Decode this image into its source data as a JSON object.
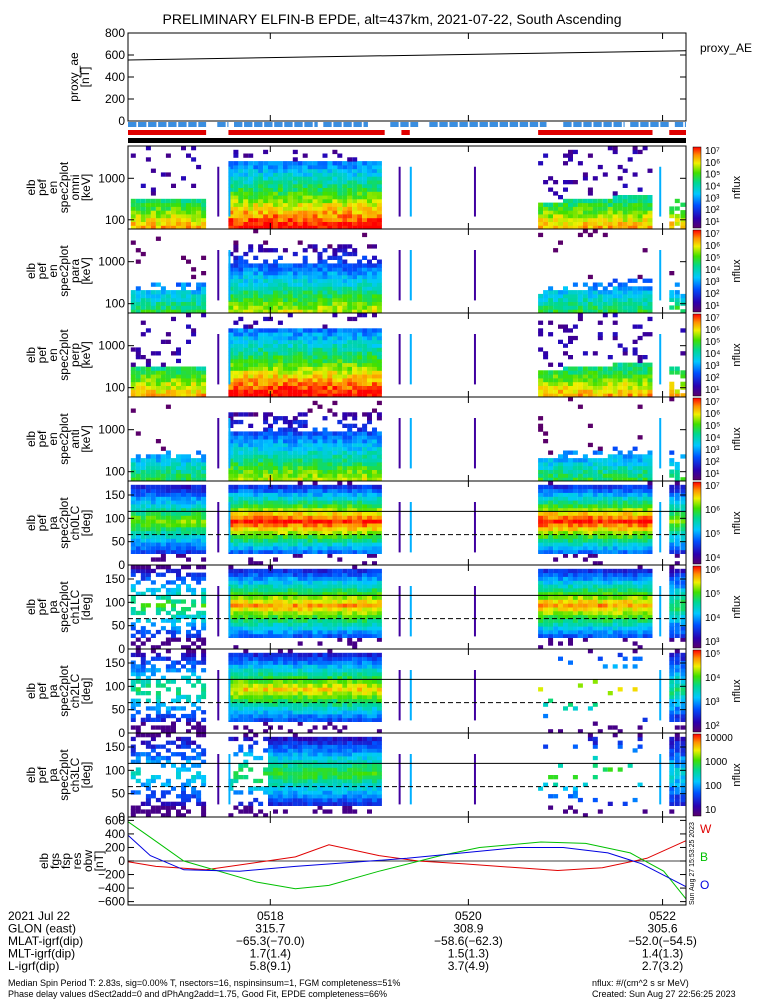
{
  "title": "PRELIMINARY ELFIN-B EPDE, alt=437km, 2021-07-22, South Ascending",
  "chart_data": {
    "type": "spectrogram",
    "x_ticks": [
      "0518",
      "0520",
      "0522"
    ],
    "panels": [
      {
        "id": "proxy_ae",
        "type": "line",
        "ylabel": [
          "proxy_ae",
          "[nT]"
        ],
        "ylim": [
          0,
          800
        ],
        "yticks": [
          "0",
          "200",
          "400",
          "600",
          "800"
        ],
        "yvals": [
          0,
          200,
          400,
          600,
          800
        ],
        "series": [
          {
            "name": "proxy_AE",
            "x": [
              0,
              1
            ],
            "y": [
              555,
              638
            ],
            "color": "#000000"
          }
        ]
      },
      {
        "id": "en_omni",
        "ylabel": [
          "elb",
          "pef",
          "en",
          "spec2plot",
          "omni",
          "[keV]"
        ],
        "yscale": "log",
        "ylim": [
          60,
          6000
        ],
        "yticks": [
          "100",
          "1000"
        ],
        "yvals": [
          100,
          1000
        ],
        "cbar_ticks": [
          "10⁷",
          "10⁶",
          "10⁵",
          "10⁴",
          "10³",
          "10²",
          "10¹"
        ],
        "cbar_label": "nflux"
      },
      {
        "id": "en_para",
        "ylabel": [
          "elb",
          "pef",
          "en",
          "spec2plot",
          "para",
          "[keV]"
        ],
        "yscale": "log",
        "ylim": [
          60,
          6000
        ],
        "yticks": [
          "100",
          "1000"
        ],
        "yvals": [
          100,
          1000
        ],
        "cbar_ticks": [
          "10⁷",
          "10⁶",
          "10⁵",
          "10⁴",
          "10³",
          "10²",
          "10¹"
        ],
        "cbar_label": "nflux"
      },
      {
        "id": "en_perp",
        "ylabel": [
          "elb",
          "pef",
          "en",
          "spec2plot",
          "perp",
          "[keV]"
        ],
        "yscale": "log",
        "ylim": [
          60,
          6000
        ],
        "yticks": [
          "100",
          "1000"
        ],
        "yvals": [
          100,
          1000
        ],
        "cbar_ticks": [
          "10⁷",
          "10⁶",
          "10⁵",
          "10⁴",
          "10³",
          "10²",
          "10¹"
        ],
        "cbar_label": "nflux"
      },
      {
        "id": "en_anti",
        "ylabel": [
          "elb",
          "pef",
          "en",
          "spec2plot",
          "anti",
          "[keV]"
        ],
        "yscale": "log",
        "ylim": [
          60,
          6000
        ],
        "yticks": [
          "100",
          "1000"
        ],
        "yvals": [
          100,
          1000
        ],
        "cbar_ticks": [
          "10⁷",
          "10⁶",
          "10⁵",
          "10⁴",
          "10³",
          "10²",
          "10¹"
        ],
        "cbar_label": "nflux"
      },
      {
        "id": "pa_ch0",
        "ylabel": [
          "elb",
          "pef",
          "pa",
          "spec2plot",
          "ch0LC",
          "[deg]"
        ],
        "ylim": [
          0,
          180
        ],
        "yticks": [
          "0",
          "50",
          "100",
          "150"
        ],
        "yvals": [
          0,
          50,
          100,
          150
        ],
        "lc_lines": [
          115,
          65
        ],
        "cbar_ticks": [
          "10⁷",
          "10⁶",
          "10⁵",
          "10⁴"
        ],
        "cbar_label": "nflux"
      },
      {
        "id": "pa_ch1",
        "ylabel": [
          "elb",
          "pef",
          "pa",
          "spec2plot",
          "ch1LC",
          "[deg]"
        ],
        "ylim": [
          0,
          180
        ],
        "yticks": [
          "0",
          "50",
          "100",
          "150"
        ],
        "yvals": [
          0,
          50,
          100,
          150
        ],
        "lc_lines": [
          115,
          65
        ],
        "cbar_ticks": [
          "10⁶",
          "10⁵",
          "10⁴",
          "10³"
        ],
        "cbar_label": "nflux"
      },
      {
        "id": "pa_ch2",
        "ylabel": [
          "elb",
          "pef",
          "pa",
          "spec2plot",
          "ch2LC",
          "[deg]"
        ],
        "ylim": [
          0,
          180
        ],
        "yticks": [
          "0",
          "50",
          "100",
          "150"
        ],
        "yvals": [
          0,
          50,
          100,
          150
        ],
        "lc_lines": [
          115,
          65
        ],
        "cbar_ticks": [
          "10⁵",
          "10⁴",
          "10³",
          "10²"
        ],
        "cbar_label": "nflux"
      },
      {
        "id": "pa_ch3",
        "ylabel": [
          "elb",
          "pef",
          "pa",
          "spec2plot",
          "ch3LC",
          "[deg]"
        ],
        "ylim": [
          0,
          180
        ],
        "yticks": [
          "0",
          "50",
          "100",
          "150"
        ],
        "yvals": [
          0,
          50,
          100,
          150
        ],
        "lc_lines": [
          115,
          65
        ],
        "cbar_ticks": [
          "10000",
          "1000",
          "100",
          "10"
        ],
        "cbar_label": "nflux"
      },
      {
        "id": "dbw",
        "type": "line",
        "ylabel": [
          "elb",
          "fgs",
          "fsp",
          "res",
          "obw",
          "[nT]"
        ],
        "ylim": [
          -650,
          650
        ],
        "yticks": [
          "600",
          "400",
          "200",
          "0",
          "−200",
          "−400",
          "−600"
        ],
        "yvals": [
          600,
          400,
          200,
          0,
          -200,
          -400,
          -600
        ],
        "series": [
          {
            "name": "W",
            "color": "#e00000",
            "x": [
              0,
              0.05,
              0.14,
              0.3,
              0.36,
              0.45,
              0.52,
              0.6,
              0.7,
              0.77,
              0.85,
              0.93,
              1
            ],
            "y": [
              -10,
              -80,
              -130,
              60,
              240,
              80,
              0,
              -40,
              -100,
              -140,
              -100,
              40,
              300
            ]
          },
          {
            "name": "B",
            "color": "#00c000",
            "x": [
              0,
              0.04,
              0.1,
              0.23,
              0.3,
              0.36,
              0.45,
              0.56,
              0.63,
              0.74,
              0.82,
              0.9,
              0.96,
              1
            ],
            "y": [
              580,
              350,
              0,
              -310,
              -410,
              -360,
              -150,
              80,
              200,
              280,
              260,
              120,
              -150,
              -560
            ]
          },
          {
            "name": "O",
            "color": "#0000e0",
            "x": [
              0,
              0.04,
              0.1,
              0.2,
              0.3,
              0.4,
              0.5,
              0.6,
              0.7,
              0.78,
              0.86,
              0.92,
              1
            ],
            "y": [
              380,
              80,
              -130,
              -150,
              -80,
              -20,
              40,
              120,
              200,
              200,
              120,
              -40,
              -380
            ]
          }
        ],
        "labels": [
          "W",
          "B",
          "O"
        ]
      }
    ]
  },
  "orbit_table": {
    "rows": [
      {
        "label": "2021 Jul 22",
        "values": [
          "0518",
          "0520",
          "0522"
        ]
      },
      {
        "label": "GLON (east)",
        "values": [
          "315.7",
          "308.9",
          "305.6"
        ]
      },
      {
        "label": "MLAT-igrf(dip)",
        "values": [
          "−65.3(−70.0)",
          "−58.6(−62.3)",
          "−52.0(−54.5)"
        ]
      },
      {
        "label": "MLT-igrf(dip)",
        "values": [
          "1.7(1.4)",
          "1.5(1.3)",
          "1.4(1.3)"
        ]
      },
      {
        "label": "L-igrf(dip)",
        "values": [
          "5.8(9.1)",
          "3.7(4.9)",
          "2.7(3.2)"
        ]
      }
    ]
  },
  "footer": {
    "line1_left": "Median Spin Period T: 2.83s, sig=0.00% T, nsectors=16, nspinsinsum=1, FGM completeness=51%",
    "line2_left": "Phase delay values dSect2add=0 and dPhAng2add=1.75, Good Fit, EPDE completeness=66%",
    "line1_right": "nflux: #/(cm^2 s sr MeV)",
    "line2_right": "Created: Sun Aug 27 22:56:25 2023",
    "side_stamp": "Sun Aug 27 15:53:25 2023"
  },
  "colors": {
    "science_bar": "#3a8ee0",
    "fast_bar": "#e00000",
    "axis": "#000000"
  }
}
